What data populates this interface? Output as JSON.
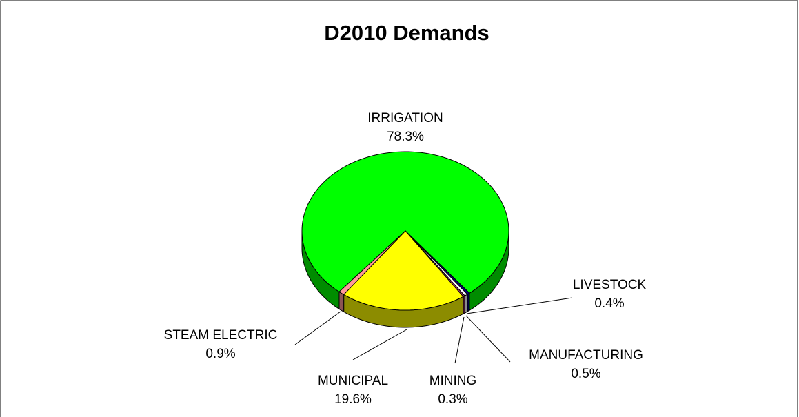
{
  "chart_data": {
    "type": "pie",
    "title": "D2010 Demands",
    "categories": [
      "IRRIGATION",
      "LIVESTOCK",
      "MANUFACTURING",
      "MINING",
      "MUNICIPAL",
      "STEAM ELECTRIC"
    ],
    "values": [
      78.3,
      0.4,
      0.5,
      0.3,
      19.6,
      0.9
    ],
    "value_labels": [
      "78.3%",
      "0.4%",
      "0.5%",
      "0.3%",
      "19.6%",
      "0.9%"
    ],
    "colors": [
      "#00ff00",
      "#000080",
      "#ffffff",
      "#993366",
      "#ffff00",
      "#ff9999"
    ]
  }
}
